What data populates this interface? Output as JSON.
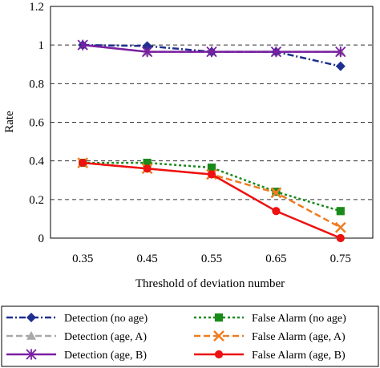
{
  "chart_data": {
    "type": "line",
    "title": "",
    "xlabel": "Threshold of deviation number",
    "ylabel": "Rate",
    "categories": [
      "0.35",
      "0.45",
      "0.55",
      "0.65",
      "0.75"
    ],
    "ylim": [
      0,
      1.2
    ],
    "yticks": [
      "0",
      "0.2",
      "0.4",
      "0.6",
      "0.8",
      "1",
      "1.2"
    ],
    "grid": "horizontal dashed",
    "legend_position": "bottom",
    "series": [
      {
        "name": "Detection (no age)",
        "values": [
          1.0,
          0.995,
          0.965,
          0.965,
          0.89
        ],
        "color": "#1f2f8f",
        "marker": "diamond",
        "dash": "dash-dot"
      },
      {
        "name": "False Alarm (no age)",
        "values": [
          0.39,
          0.39,
          0.365,
          0.24,
          0.14
        ],
        "color": "#1a8a1a",
        "marker": "square",
        "dash": "dot"
      },
      {
        "name": "Detection (age, A)",
        "values": [
          1.0,
          0.965,
          0.965,
          0.965,
          0.965
        ],
        "color": "#a9a9a9",
        "marker": "triangle",
        "dash": "dash"
      },
      {
        "name": "False Alarm (age, A)",
        "values": [
          0.39,
          0.36,
          0.33,
          0.235,
          0.055
        ],
        "color": "#ee7d22",
        "marker": "x",
        "dash": "dash"
      },
      {
        "name": "Detection (age, B)",
        "values": [
          1.0,
          0.965,
          0.965,
          0.965,
          0.965
        ],
        "color": "#7a1fa2",
        "marker": "asterisk",
        "dash": "solid"
      },
      {
        "name": "False Alarm (age, B)",
        "values": [
          0.39,
          0.36,
          0.33,
          0.14,
          0.0
        ],
        "color": "#ee1111",
        "marker": "circle",
        "dash": "solid"
      }
    ]
  }
}
